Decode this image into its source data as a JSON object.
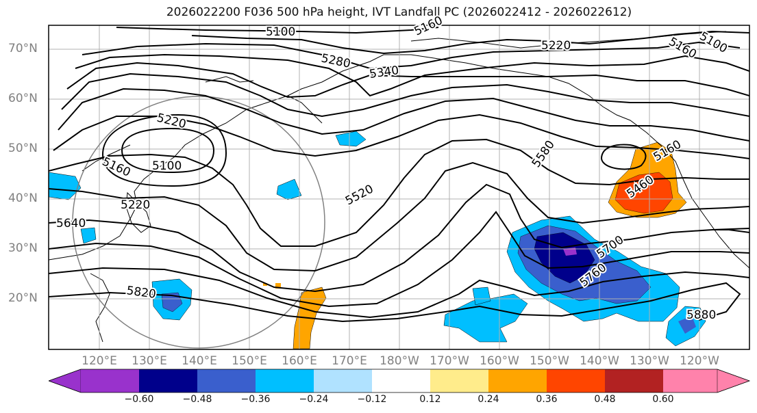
{
  "title": "2026022200 F036 500 hPa height, IVT Landfall PC (2026022412 - 2026022612)",
  "lat_labels": [
    "70°N",
    "60°N",
    "50°N",
    "40°N",
    "30°N",
    "20°N"
  ],
  "lon_labels": [
    "120°E",
    "130°E",
    "140°E",
    "150°E",
    "160°E",
    "170°E",
    "180°W",
    "170°W",
    "160°W",
    "150°W",
    "140°W",
    "130°W",
    "120°W"
  ],
  "contour_labels": [
    "5100",
    "5160",
    "5220",
    "5280",
    "5340",
    "5220",
    "5160",
    "5100",
    "5160",
    "5100",
    "5220",
    "5520",
    "5580",
    "5640",
    "5460",
    "5700",
    "5760",
    "5820",
    "5880",
    "5160"
  ],
  "colorbar": {
    "tick_labels": [
      "−0.60",
      "−0.48",
      "−0.36",
      "−0.24",
      "−0.12",
      "0.12",
      "0.24",
      "0.36",
      "0.48",
      "0.60"
    ],
    "colors": [
      "#9932cc",
      "#00008b",
      "#3a5fcd",
      "#00bfff",
      "#b0e2ff",
      "#ffffff",
      "#ffec8b",
      "#ffa500",
      "#ff4500",
      "#b22222",
      "#ff82ab"
    ]
  },
  "palette": {
    "height_contour": "#000000",
    "coastline": "#000000",
    "grid": "#b0b0b0",
    "circle": "#808080"
  }
}
